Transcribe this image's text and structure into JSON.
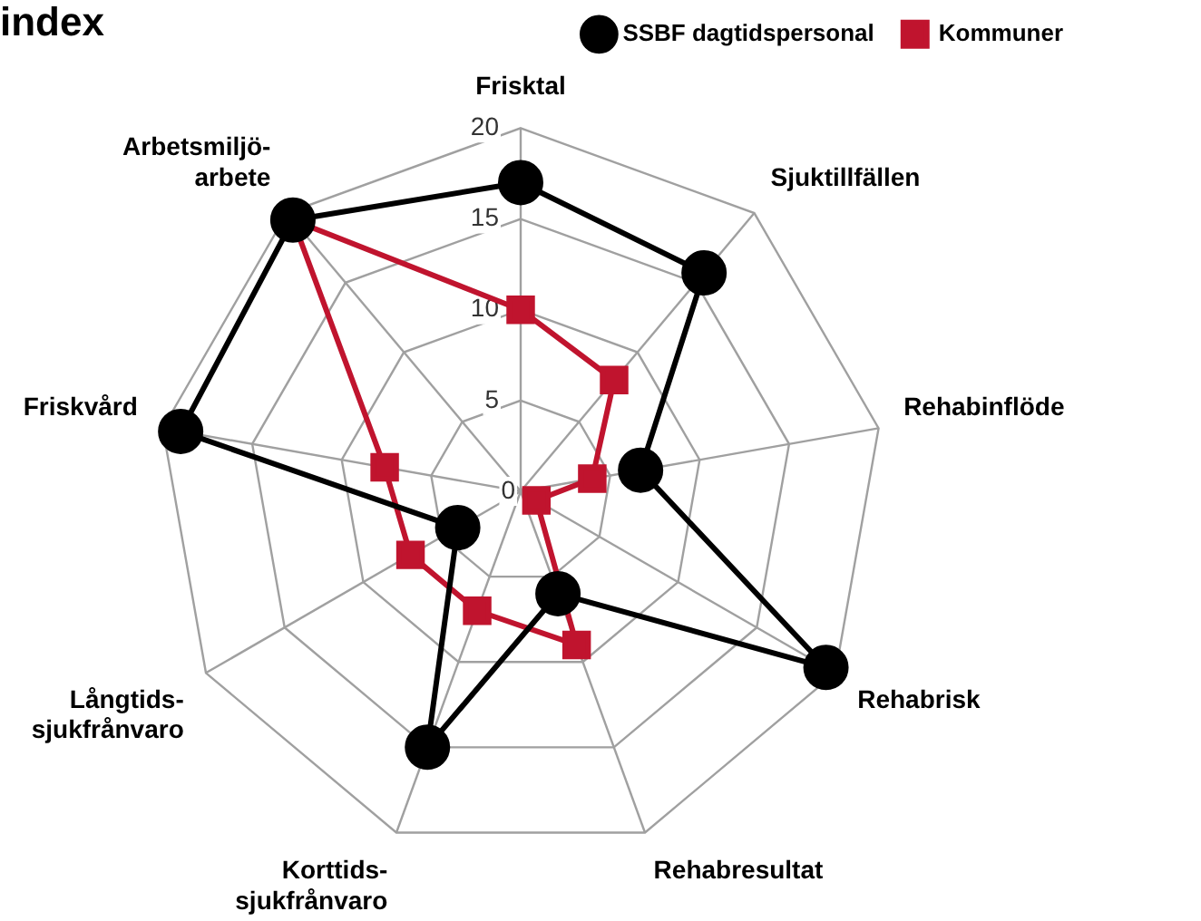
{
  "chart_data": {
    "type": "radar",
    "title": "index",
    "categories": [
      "Frisktal",
      "Sjuktillfällen",
      "Rehabinflöde",
      "Rehabrisk",
      "Rehabresultat",
      "Korttids-sjukfrånvaro",
      "Långtids-sjukfrånvaro",
      "Friskvård",
      "Arbetsmiljö-arbete"
    ],
    "series": [
      {
        "name": "SSBF dagtidspersonal",
        "color": "#000000",
        "marker": "circle",
        "values": [
          17,
          15.7,
          6.7,
          19.4,
          6,
          15,
          4,
          19,
          19.5
        ]
      },
      {
        "name": "Kommuner",
        "color": "#c0142e",
        "marker": "square",
        "values": [
          10,
          8,
          4,
          1,
          9,
          7,
          7,
          7.6,
          19.5
        ]
      }
    ],
    "ylim": [
      0,
      20
    ],
    "yticks": [
      0,
      5,
      10,
      15,
      20
    ],
    "grid": true,
    "legend": "top right"
  }
}
